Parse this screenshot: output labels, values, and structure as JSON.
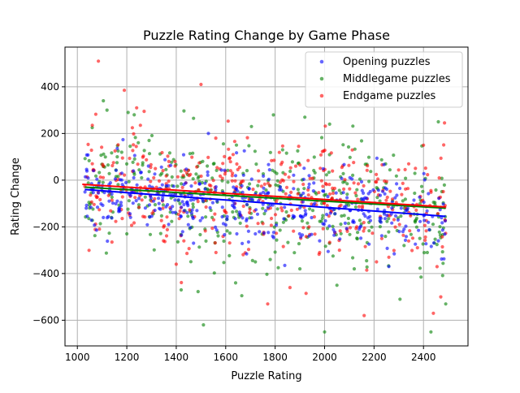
{
  "chart_data": {
    "type": "scatter",
    "title": "Puzzle Rating Change by Game Phase",
    "xlabel": "Puzzle Rating",
    "ylabel": "Rating Change",
    "xlim": [
      950,
      2580
    ],
    "ylim": [
      -710,
      570
    ],
    "xticks": [
      1000,
      1200,
      1400,
      1600,
      1800,
      2000,
      2200,
      2400
    ],
    "yticks": [
      -600,
      -400,
      -200,
      0,
      200,
      400
    ],
    "grid": true,
    "legend_position": "top-right",
    "points_per_series_estimate": 420,
    "series": [
      {
        "name": "Opening puzzles",
        "color": "#0000ff",
        "trend": {
          "x": [
            1030,
            2490
          ],
          "y": [
            -40,
            -155
          ]
        },
        "scatter_sd": 80,
        "points": [
          [
            1040,
            -155
          ],
          [
            1085,
            -55
          ],
          [
            1105,
            -160
          ],
          [
            1180,
            30
          ],
          [
            1210,
            -60
          ],
          [
            1280,
            -40
          ],
          [
            1345,
            -75
          ],
          [
            1395,
            -85
          ],
          [
            1470,
            -270
          ],
          [
            1510,
            -60
          ],
          [
            1530,
            200
          ],
          [
            1565,
            -90
          ],
          [
            1645,
            -230
          ],
          [
            1720,
            -230
          ],
          [
            1790,
            -240
          ],
          [
            1860,
            -80
          ],
          [
            1910,
            -235
          ],
          [
            1980,
            -260
          ],
          [
            2080,
            -115
          ],
          [
            2140,
            -210
          ],
          [
            2225,
            -65
          ],
          [
            2260,
            -370
          ],
          [
            2310,
            -120
          ],
          [
            2380,
            -215
          ],
          [
            2460,
            -260
          ]
        ]
      },
      {
        "name": "Middlegame puzzles",
        "color": "#008000",
        "trend": {
          "x": [
            1030,
            2490
          ],
          "y": [
            -30,
            -120
          ]
        },
        "scatter_sd": 130,
        "points": [
          [
            1060,
            225
          ],
          [
            1105,
            340
          ],
          [
            1120,
            300
          ],
          [
            1165,
            125
          ],
          [
            1200,
            -230
          ],
          [
            1230,
            280
          ],
          [
            1260,
            10
          ],
          [
            1290,
            170
          ],
          [
            1420,
            -470
          ],
          [
            1470,
            265
          ],
          [
            1510,
            -620
          ],
          [
            1545,
            -160
          ],
          [
            1640,
            -440
          ],
          [
            1665,
            -495
          ],
          [
            1720,
            -350
          ],
          [
            1780,
            -340
          ],
          [
            1830,
            130
          ],
          [
            1900,
            -380
          ],
          [
            1920,
            270
          ],
          [
            2000,
            -650
          ],
          [
            2050,
            -450
          ],
          [
            2120,
            -380
          ],
          [
            2170,
            -345
          ],
          [
            2305,
            -510
          ],
          [
            2390,
            -415
          ],
          [
            2430,
            -650
          ],
          [
            2460,
            250
          ],
          [
            2490,
            -530
          ]
        ]
      },
      {
        "name": "Endgame puzzles",
        "color": "#ff0000",
        "trend": {
          "x": [
            1020,
            2490
          ],
          "y": [
            -18,
            -115
          ]
        },
        "scatter_sd": 120,
        "points": [
          [
            1085,
            510
          ],
          [
            1105,
            60
          ],
          [
            1140,
            -265
          ],
          [
            1190,
            385
          ],
          [
            1240,
            310
          ],
          [
            1255,
            235
          ],
          [
            1270,
            295
          ],
          [
            1370,
            80
          ],
          [
            1400,
            -360
          ],
          [
            1500,
            410
          ],
          [
            1560,
            180
          ],
          [
            1630,
            110
          ],
          [
            1770,
            -530
          ],
          [
            1860,
            -460
          ],
          [
            1925,
            -485
          ],
          [
            1980,
            -310
          ],
          [
            2060,
            -300
          ],
          [
            2130,
            -200
          ],
          [
            2160,
            -580
          ],
          [
            2210,
            -350
          ],
          [
            2260,
            -330
          ],
          [
            2340,
            70
          ],
          [
            2400,
            150
          ],
          [
            2440,
            -570
          ],
          [
            2470,
            -500
          ],
          [
            2485,
            245
          ]
        ]
      }
    ]
  }
}
